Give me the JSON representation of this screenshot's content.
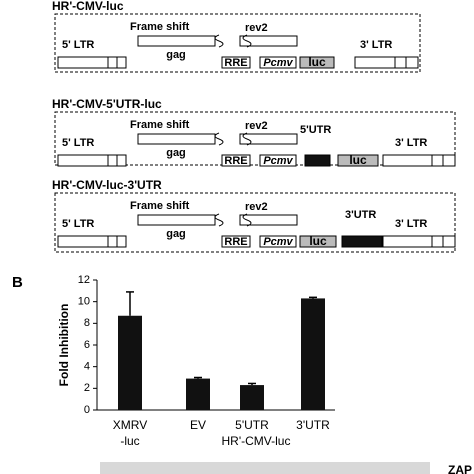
{
  "constructs": [
    {
      "title": "HR'-CMV-luc",
      "ltr5": "5' LTR",
      "frame_shift": "Frame shift",
      "gag": "gag",
      "rev2": "rev2",
      "rre": "RRE",
      "promoter": "Pcmv",
      "luc": "luc",
      "ltr3": "3' LTR"
    },
    {
      "title": "HR'-CMV-5'UTR-luc",
      "ltr5": "5' LTR",
      "frame_shift": "Frame shift",
      "gag": "gag",
      "rev2": "rev2",
      "rre": "RRE",
      "promoter": "Pcmv",
      "utr": "5'UTR",
      "luc": "luc",
      "ltr3": "3' LTR"
    },
    {
      "title": "HR'-CMV-luc-3'UTR",
      "ltr5": "5' LTR",
      "frame_shift": "Frame shift",
      "gag": "gag",
      "rev2": "rev2",
      "rre": "RRE",
      "promoter": "Pcmv",
      "luc": "luc",
      "utr": "3'UTR",
      "ltr3": "3' LTR"
    }
  ],
  "panel_label": "B",
  "chart_data": {
    "type": "bar",
    "y_label": "Fold Inhibition",
    "categories": [
      "XMRV\n-luc",
      "EV",
      "5'UTR",
      "3'UTR"
    ],
    "group_label": "HR'-CMV-luc",
    "values": [
      8.7,
      2.9,
      2.3,
      10.3
    ],
    "errors": [
      2.2,
      0.1,
      0.15,
      0.1
    ],
    "color": "#111111",
    "ylim": [
      0,
      12
    ],
    "yticks": [
      0,
      2,
      4,
      6,
      8,
      10,
      12
    ]
  },
  "blot_label": "ZAP"
}
